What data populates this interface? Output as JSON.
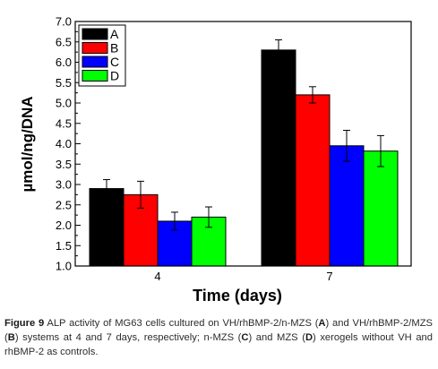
{
  "chart_data": {
    "type": "bar",
    "categories": [
      "4",
      "7"
    ],
    "series": [
      {
        "name": "A",
        "color": "#000000",
        "values": [
          2.9,
          6.3
        ],
        "errors": [
          0.22,
          0.25
        ]
      },
      {
        "name": "B",
        "color": "#ff0000",
        "values": [
          2.75,
          5.2
        ],
        "errors": [
          0.33,
          0.2
        ]
      },
      {
        "name": "C",
        "color": "#0000ff",
        "values": [
          2.1,
          3.95
        ],
        "errors": [
          0.22,
          0.38
        ]
      },
      {
        "name": "D",
        "color": "#00ff00",
        "values": [
          2.2,
          3.82
        ],
        "errors": [
          0.25,
          0.38
        ]
      }
    ],
    "xlabel": "Time (days)",
    "ylabel": "µmol/ng/DNA",
    "ylim": [
      1.0,
      7.0
    ],
    "yticks": [
      "1.0",
      "1.5",
      "2.0",
      "2.5",
      "3.0",
      "3.5",
      "4.0",
      "4.5",
      "5.0",
      "5.5",
      "6.0",
      "6.5",
      "7.0"
    ],
    "grid": false,
    "legend_placement": "top-left"
  },
  "caption": {
    "figure_label": "Figure 9",
    "text_1": " ALP activity of MG63 cells cultured on VH/rhBMP-2/n-MZS (",
    "a": "A",
    "text_2": ") and VH/rhBMP-2/MZS (",
    "b": "B",
    "text_3": ") systems at 4 and 7 days, respectively; n-MZS (",
    "c": "C",
    "text_4": ") and MZS (",
    "d": "D",
    "text_5": ") xerogels without VH and rhBMP-2 as controls."
  }
}
